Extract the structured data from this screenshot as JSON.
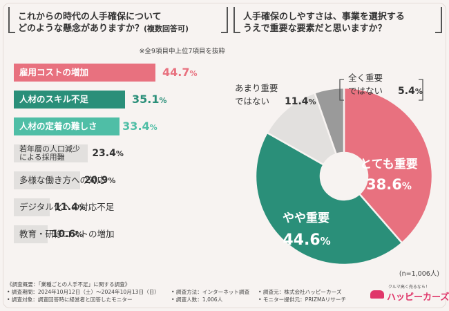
{
  "left": {
    "title_line1": "これからの時代の人手確保について",
    "title_line2": "どのような懸念がありますか？",
    "title_sub": "(複数回答可)",
    "note": "※全9項目中上位7項目を抜粋"
  },
  "right": {
    "title_line1": "人手確保のしやすさは、事業を選択する",
    "title_line2": "うえで重要な要素だと思いますか？"
  },
  "n_note": "(n=1,006人)",
  "colors": {
    "pink": "#e8717f",
    "green": "#2a8f79",
    "teal": "#4fbea6",
    "gray": "#e2e0de",
    "graydark": "#9a9a9a"
  },
  "chart_data": [
    {
      "type": "bar",
      "orientation": "horizontal",
      "title": "これからの時代の人手確保についてどのような懸念がありますか？(複数回答可)",
      "unit": "%",
      "categories": [
        "雇用コストの増加",
        "人材のスキル不足",
        "人材の定着の難しさ",
        "若年層の人口減少による採用難",
        "多様な働き方への対応",
        "デジタル化への対応不足",
        "教育・研修コストの増加"
      ],
      "label_lines": [
        [
          "雇用コストの増加"
        ],
        [
          "人材のスキル不足"
        ],
        [
          "人材の定着の難しさ"
        ],
        [
          "若年層の人口減少",
          "による採用難"
        ],
        [
          "多様な働き方への対応"
        ],
        [
          "デジタル化への対応不足"
        ],
        [
          "教育・研修コストの増加"
        ]
      ],
      "values": [
        44.7,
        35.1,
        33.4,
        23.4,
        20.9,
        11.4,
        10.6
      ],
      "value_labels": [
        [
          "44.7",
          "%"
        ],
        [
          "35.1",
          "%"
        ],
        [
          "33.4",
          "%"
        ],
        [
          "23.4",
          "%"
        ],
        [
          "20.9",
          "%"
        ],
        [
          "11.4",
          "%"
        ],
        [
          "10.6",
          "%"
        ]
      ],
      "highlight": [
        "pink",
        "green",
        "teal",
        "gray",
        "gray",
        "gray",
        "gray"
      ]
    },
    {
      "type": "pie",
      "subtype": "donut",
      "title": "人手確保のしやすさは、事業を選択するうえで重要な要素だと思いますか？",
      "categories": [
        "とても重要",
        "やや重要",
        "あまり重要ではない",
        "全く重要ではない"
      ],
      "label_lines": [
        [
          "とても重要"
        ],
        [
          "やや重要"
        ],
        [
          "あまり重要",
          "ではない"
        ],
        [
          "全く重要",
          "ではない"
        ]
      ],
      "values": [
        38.6,
        44.6,
        11.4,
        5.4
      ],
      "value_labels": [
        [
          "38.6",
          "%"
        ],
        [
          "44.6",
          "%"
        ],
        [
          "11.4",
          "%"
        ],
        [
          "5.4",
          "%"
        ]
      ],
      "colors": [
        "#e8717f",
        "#2a8f79",
        "#e2e0de",
        "#9a9a9a"
      ],
      "n": "n=1,006人"
    }
  ],
  "footer": {
    "l1": "《調査概要：「業種ごとの人手不足」に関する調査》",
    "l2a": "• 調査期間：2024年10月12日（土）～2024年10月13日（日）",
    "l2b": "• 調査方法：インターネット調査",
    "l2c": "• 調査元：株式会社ハッピーカーズ",
    "l3a": "• 調査対象：調査回答時に経営者と回答したモニター",
    "l3b": "• 調査人数：1,006人",
    "l3c": "• モニター提供元：PRIZMAリサーチ"
  },
  "logo": {
    "tagline": "クルマ高く売るなら！",
    "name": "ハッピーカーズ"
  }
}
